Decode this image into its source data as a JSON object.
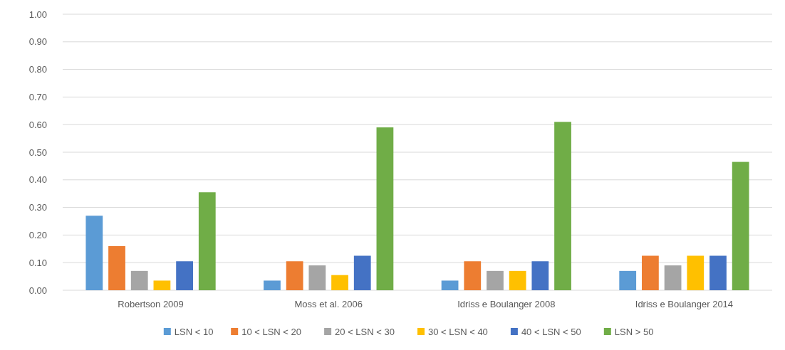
{
  "chart_data": {
    "type": "bar",
    "categories": [
      "Robertson 2009",
      "Moss et al. 2006",
      "Idriss e Boulanger 2008",
      "Idriss e Boulanger 2014"
    ],
    "series": [
      {
        "name": "LSN < 10",
        "color": "#5b9bd5",
        "values": [
          0.27,
          0.035,
          0.035,
          0.07
        ]
      },
      {
        "name": "10 < LSN < 20",
        "color": "#ed7d31",
        "values": [
          0.16,
          0.105,
          0.105,
          0.125
        ]
      },
      {
        "name": "20 < LSN < 30",
        "color": "#a5a5a5",
        "values": [
          0.07,
          0.09,
          0.07,
          0.09
        ]
      },
      {
        "name": "30 < LSN < 40",
        "color": "#ffc000",
        "values": [
          0.035,
          0.055,
          0.07,
          0.125
        ]
      },
      {
        "name": "40 < LSN < 50",
        "color": "#4472c4",
        "values": [
          0.105,
          0.125,
          0.105,
          0.125
        ]
      },
      {
        "name": "LSN > 50",
        "color": "#70ad47",
        "values": [
          0.355,
          0.59,
          0.61,
          0.465
        ]
      }
    ],
    "ylim": [
      0,
      1
    ],
    "yticks": [
      {
        "value": 0,
        "label": "0.00"
      },
      {
        "value": 0.1,
        "label": "0.10"
      },
      {
        "value": 0.2,
        "label": "0.20"
      },
      {
        "value": 0.3,
        "label": "0.30"
      },
      {
        "value": 0.4,
        "label": "0.40"
      },
      {
        "value": 0.5,
        "label": "0.50"
      },
      {
        "value": 0.6,
        "label": "0.60"
      },
      {
        "value": 0.7,
        "label": "0.70"
      },
      {
        "value": 0.8,
        "label": "0.80"
      },
      {
        "value": 0.9,
        "label": "0.90"
      },
      {
        "value": 1,
        "label": "1.00"
      }
    ],
    "grid": "y",
    "legend": "bottom"
  }
}
